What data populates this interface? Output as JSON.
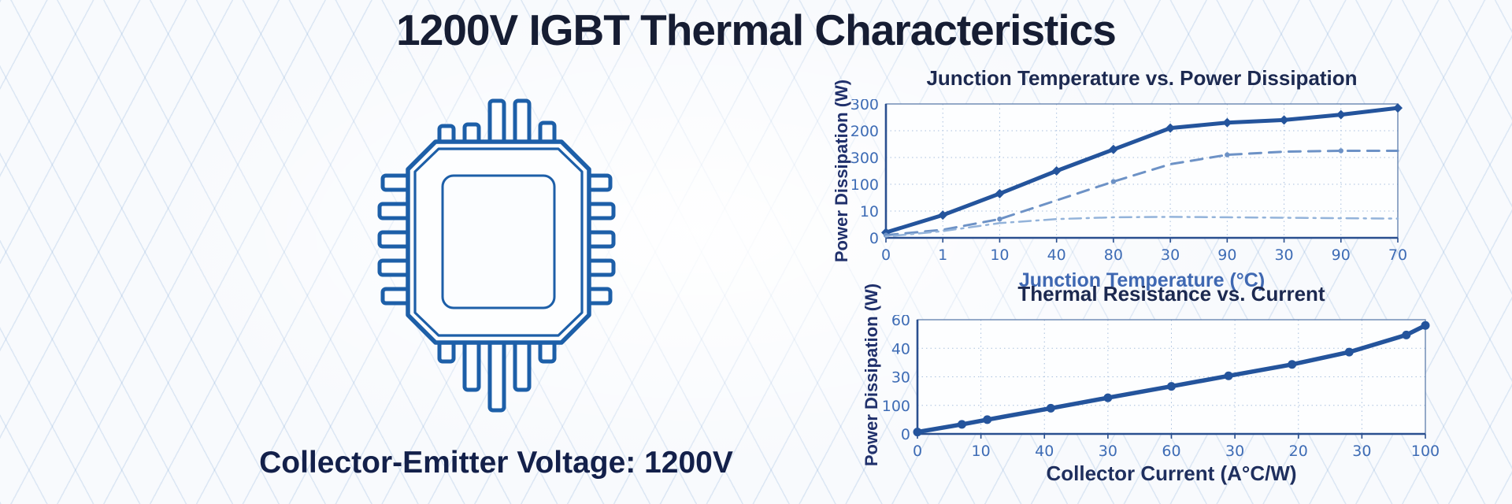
{
  "page": {
    "title": "1200V IGBT Thermal Characteristics",
    "background_color": "#f8fafd",
    "grid_pattern_color": "#cfdff0",
    "title_color": "#161d33"
  },
  "chip": {
    "icon": "igbt-chip-icon",
    "outline_color": "#1d5fa8",
    "caption": "Collector-Emitter Voltage: 1200V"
  },
  "chart_data": [
    {
      "type": "line",
      "title": "Junction Temperature vs. Power Dissipation",
      "xlabel": "Junction Temperature (°C)",
      "ylabel": "Power Dissipation (W)",
      "x_tick_labels": [
        "0",
        "1",
        "10",
        "40",
        "80",
        "30",
        "90",
        "30",
        "90",
        "70"
      ],
      "y_tick_labels": [
        "300",
        "200",
        "300",
        "100",
        "10",
        "0"
      ],
      "ylim": [
        0,
        300
      ],
      "grid": true,
      "legend": "none",
      "axis_color": "#2a4f8f",
      "tick_label_color": "#3e6cb5",
      "grid_color": "#a9c0de",
      "series": [
        {
          "name": "junction-temperature-solid",
          "line_style": "solid",
          "marker": "diamond",
          "width": 5,
          "color": "#24549c",
          "values": [
            12,
            51,
            99,
            150,
            198,
            246,
            258,
            264,
            276,
            291
          ]
        },
        {
          "name": "case-temperature-dashed",
          "line_style": "dashed",
          "marker": "dot",
          "width": 3,
          "color": "#6d92c6",
          "values": [
            6,
            18,
            42,
            84,
            126,
            165,
            186,
            193,
            195,
            195
          ]
        },
        {
          "name": "ambient-dash-dot",
          "line_style": "dash-dot",
          "marker": "none",
          "width": 2.5,
          "color": "#93b3da",
          "values": [
            3,
            15,
            33,
            42,
            46,
            47,
            46,
            45,
            44,
            43
          ]
        }
      ]
    },
    {
      "type": "line",
      "title": "Thermal Resistance vs. Current",
      "xlabel": "Collector Current (A°C/W)",
      "ylabel": "Power Dissipation (W)",
      "x_tick_labels": [
        "0",
        "10",
        "40",
        "30",
        "60",
        "30",
        "20",
        "30",
        "100"
      ],
      "y_tick_labels": [
        "60",
        "40",
        "30",
        "100",
        "0"
      ],
      "ylim": [
        0,
        60
      ],
      "grid": true,
      "legend": "none",
      "axis_color": "#2a4f8f",
      "tick_label_color": "#3e6cb5",
      "grid_color": "#a9c0de",
      "series": [
        {
          "name": "thermal-resistance-solid",
          "line_style": "solid",
          "marker": "circle",
          "width": 5.5,
          "color": "#24549c",
          "points": [
            [
              0,
              1
            ],
            [
              0.7,
              5
            ],
            [
              1.1,
              7.5
            ],
            [
              2.1,
              13.5
            ],
            [
              3,
              19
            ],
            [
              4,
              25
            ],
            [
              4.9,
              30.5
            ],
            [
              5.9,
              36.5
            ],
            [
              6.8,
              43
            ],
            [
              7.7,
              52
            ],
            [
              8,
              57
            ]
          ]
        }
      ]
    }
  ]
}
